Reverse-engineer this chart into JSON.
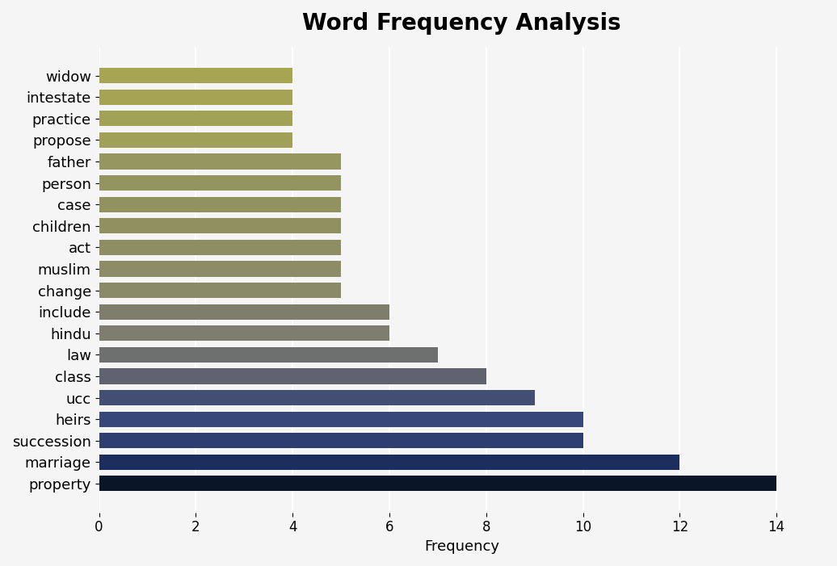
{
  "title": "Word Frequency Analysis",
  "categories": [
    "property",
    "marriage",
    "succession",
    "heirs",
    "ucc",
    "class",
    "law",
    "hindu",
    "include",
    "change",
    "muslim",
    "act",
    "children",
    "case",
    "person",
    "father",
    "propose",
    "practice",
    "intestate",
    "widow"
  ],
  "values": [
    14,
    12,
    10,
    10,
    9,
    8,
    7,
    6,
    6,
    5,
    5,
    5,
    5,
    5,
    5,
    5,
    4,
    4,
    4,
    4
  ],
  "bar_colors": [
    "#0a1628",
    "#1b2e5e",
    "#2d3f6e",
    "#374878",
    "#424e72",
    "#606270",
    "#6e7070",
    "#7d7e6e",
    "#7e7e6c",
    "#8a8a68",
    "#8c8c66",
    "#8e8e64",
    "#909060",
    "#929260",
    "#949460",
    "#969660",
    "#a0a058",
    "#a2a256",
    "#a4a454",
    "#a6a652"
  ],
  "xlabel": "Frequency",
  "ylabel": "",
  "xlim": [
    0,
    15
  ],
  "background_color": "#f5f5f5",
  "title_fontsize": 20,
  "label_fontsize": 13,
  "tick_fontsize": 12
}
